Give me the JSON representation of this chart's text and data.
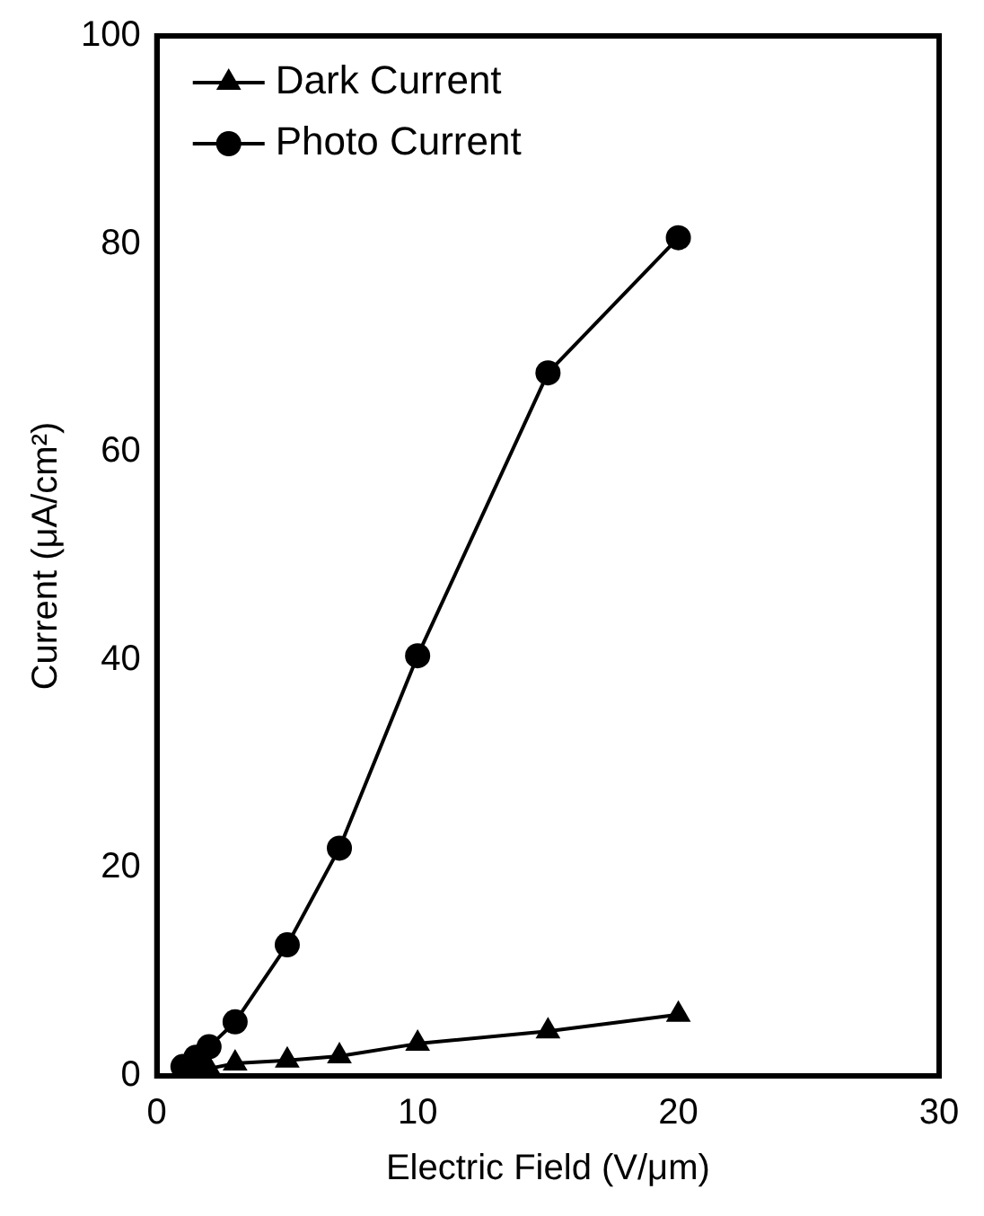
{
  "chart_data": {
    "type": "line",
    "xlabel": "Electric Field (V/μm)",
    "ylabel": "Current (μA/cm²)",
    "xlim": [
      0,
      30
    ],
    "xticks": [
      0,
      10,
      20,
      30
    ],
    "ylim": [
      0,
      100
    ],
    "yticks": [
      0,
      20,
      40,
      60,
      80,
      100
    ],
    "grid": false,
    "legend": "top left",
    "series": [
      {
        "name": "Dark Current",
        "color": "#000000",
        "marker": "triangle",
        "x": [
          1,
          1.5,
          2,
          3,
          5,
          7,
          10,
          15,
          20
        ],
        "values": [
          0.3,
          0.5,
          0.7,
          1.2,
          1.5,
          1.9,
          3.1,
          4.3,
          5.9
        ]
      },
      {
        "name": "Photo Current",
        "color": "#000000",
        "marker": "circle",
        "x": [
          1,
          1.5,
          2,
          3,
          5,
          7,
          10,
          15,
          20
        ],
        "values": [
          0.9,
          1.8,
          2.8,
          5.2,
          12.6,
          21.9,
          40.4,
          67.6,
          80.6
        ]
      }
    ]
  }
}
